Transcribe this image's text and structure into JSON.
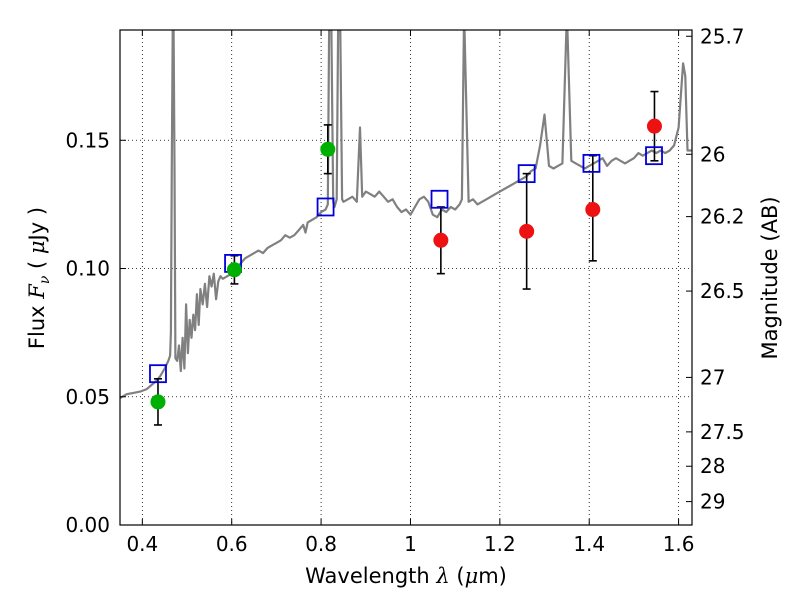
{
  "chart_data": {
    "type": "scatter",
    "title": "",
    "xlabel": {
      "prefix": "Wavelength  ",
      "symbol": "λ",
      "suffix": " (",
      "unit_symbol": "μ",
      "unit_tail": "m)"
    },
    "ylabel": {
      "prefix": "Flux  ",
      "symbol": "F",
      "subscript": "ν",
      "mid": "  ( ",
      "unit_symbol": "μ",
      "unit_tail": "Jy )"
    },
    "y2label": "Magnitude (AB)",
    "xlim": [
      0.35,
      1.63
    ],
    "ylim": [
      0.0,
      0.193
    ],
    "grid": true,
    "grid_style": "dotted",
    "x_ticks": [
      {
        "value": 0.4,
        "label": "0.4"
      },
      {
        "value": 0.6,
        "label": "0.6"
      },
      {
        "value": 0.8,
        "label": "0.8"
      },
      {
        "value": 1.0,
        "label": "1"
      },
      {
        "value": 1.2,
        "label": "1.2"
      },
      {
        "value": 1.4,
        "label": "1.4"
      },
      {
        "value": 1.6,
        "label": "1.6"
      }
    ],
    "y_ticks": [
      {
        "value": 0.0,
        "label": "0.00"
      },
      {
        "value": 0.05,
        "label": "0.05"
      },
      {
        "value": 0.1,
        "label": "0.10"
      },
      {
        "value": 0.15,
        "label": "0.15"
      }
    ],
    "y2_ticks": [
      {
        "label": "25.7",
        "magnitude": 25.7
      },
      {
        "label": "26",
        "magnitude": 26.0
      },
      {
        "label": "26.2",
        "magnitude": 26.2
      },
      {
        "label": "26.5",
        "magnitude": 26.5
      },
      {
        "label": "27",
        "magnitude": 27.0
      },
      {
        "label": "27.5",
        "magnitude": 27.5
      },
      {
        "label": "28",
        "magnitude": 28.0
      },
      {
        "label": "29",
        "magnitude": 29.0
      }
    ],
    "colors": {
      "model_line": "#808080",
      "detections": "#00b000",
      "upper_points": "#ee1111",
      "model_boxes": "#0000dd",
      "error_bars": "#000000"
    },
    "series": [
      {
        "kind": "model_spectrum",
        "points": [
          [
            0.35,
            0.0495
          ],
          [
            0.365,
            0.051
          ],
          [
            0.38,
            0.0515
          ],
          [
            0.395,
            0.052
          ],
          [
            0.41,
            0.053
          ],
          [
            0.42,
            0.0545
          ],
          [
            0.43,
            0.056
          ],
          [
            0.44,
            0.058
          ],
          [
            0.45,
            0.061
          ],
          [
            0.458,
            0.064
          ],
          [
            0.462,
            0.066
          ],
          [
            0.464,
            0.075
          ],
          [
            0.466,
            0.14
          ],
          [
            0.468,
            0.193
          ],
          [
            0.47,
            0.193
          ],
          [
            0.472,
            0.14
          ],
          [
            0.474,
            0.065
          ],
          [
            0.478,
            0.064
          ],
          [
            0.482,
            0.07
          ],
          [
            0.486,
            0.06
          ],
          [
            0.49,
            0.073
          ],
          [
            0.494,
            0.061
          ],
          [
            0.498,
            0.086
          ],
          [
            0.502,
            0.067
          ],
          [
            0.506,
            0.08
          ],
          [
            0.51,
            0.073
          ],
          [
            0.514,
            0.082
          ],
          [
            0.518,
            0.076
          ],
          [
            0.522,
            0.09
          ],
          [
            0.526,
            0.078
          ],
          [
            0.53,
            0.092
          ],
          [
            0.535,
            0.086
          ],
          [
            0.54,
            0.094
          ],
          [
            0.545,
            0.085
          ],
          [
            0.55,
            0.097
          ],
          [
            0.555,
            0.093
          ],
          [
            0.56,
            0.098
          ],
          [
            0.565,
            0.088
          ],
          [
            0.57,
            0.095
          ],
          [
            0.575,
            0.097
          ],
          [
            0.58,
            0.096
          ],
          [
            0.59,
            0.097
          ],
          [
            0.6,
            0.098
          ],
          [
            0.61,
            0.1
          ],
          [
            0.62,
            0.102
          ],
          [
            0.63,
            0.104
          ],
          [
            0.64,
            0.105
          ],
          [
            0.65,
            0.106
          ],
          [
            0.66,
            0.107
          ],
          [
            0.67,
            0.106
          ],
          [
            0.68,
            0.108
          ],
          [
            0.69,
            0.109
          ],
          [
            0.7,
            0.11
          ],
          [
            0.71,
            0.111
          ],
          [
            0.72,
            0.113
          ],
          [
            0.73,
            0.112
          ],
          [
            0.74,
            0.113
          ],
          [
            0.75,
            0.115
          ],
          [
            0.76,
            0.117
          ],
          [
            0.765,
            0.114
          ],
          [
            0.77,
            0.118
          ],
          [
            0.78,
            0.119
          ],
          [
            0.79,
            0.12
          ],
          [
            0.8,
            0.122
          ],
          [
            0.81,
            0.123
          ],
          [
            0.815,
            0.125
          ],
          [
            0.818,
            0.193
          ],
          [
            0.823,
            0.193
          ],
          [
            0.827,
            0.126
          ],
          [
            0.83,
            0.124
          ],
          [
            0.835,
            0.127
          ],
          [
            0.838,
            0.193
          ],
          [
            0.843,
            0.193
          ],
          [
            0.847,
            0.127
          ],
          [
            0.85,
            0.126
          ],
          [
            0.86,
            0.127
          ],
          [
            0.87,
            0.128
          ],
          [
            0.88,
            0.126
          ],
          [
            0.887,
            0.155
          ],
          [
            0.892,
            0.128
          ],
          [
            0.9,
            0.13
          ],
          [
            0.91,
            0.129
          ],
          [
            0.92,
            0.128
          ],
          [
            0.93,
            0.13
          ],
          [
            0.94,
            0.128
          ],
          [
            0.95,
            0.126
          ],
          [
            0.96,
            0.127
          ],
          [
            0.97,
            0.124
          ],
          [
            0.98,
            0.122
          ],
          [
            0.99,
            0.123
          ],
          [
            1.0,
            0.121
          ],
          [
            1.01,
            0.124
          ],
          [
            1.02,
            0.127
          ],
          [
            1.03,
            0.128
          ],
          [
            1.04,
            0.126
          ],
          [
            1.05,
            0.121
          ],
          [
            1.06,
            0.12
          ],
          [
            1.07,
            0.123
          ],
          [
            1.08,
            0.122
          ],
          [
            1.09,
            0.124
          ],
          [
            1.1,
            0.123
          ],
          [
            1.11,
            0.125
          ],
          [
            1.115,
            0.127
          ],
          [
            1.12,
            0.2
          ],
          [
            1.13,
            0.126
          ],
          [
            1.14,
            0.127
          ],
          [
            1.15,
            0.125
          ],
          [
            1.16,
            0.126
          ],
          [
            1.17,
            0.127
          ],
          [
            1.18,
            0.128
          ],
          [
            1.19,
            0.129
          ],
          [
            1.2,
            0.13
          ],
          [
            1.21,
            0.131
          ],
          [
            1.22,
            0.132
          ],
          [
            1.23,
            0.133
          ],
          [
            1.24,
            0.134
          ],
          [
            1.25,
            0.135
          ],
          [
            1.26,
            0.136
          ],
          [
            1.27,
            0.138
          ],
          [
            1.28,
            0.139
          ],
          [
            1.29,
            0.148
          ],
          [
            1.3,
            0.16
          ],
          [
            1.31,
            0.14
          ],
          [
            1.32,
            0.139
          ],
          [
            1.33,
            0.14
          ],
          [
            1.34,
            0.141
          ],
          [
            1.35,
            0.2
          ],
          [
            1.36,
            0.142
          ],
          [
            1.37,
            0.141
          ],
          [
            1.38,
            0.14
          ],
          [
            1.39,
            0.139
          ],
          [
            1.4,
            0.14
          ],
          [
            1.41,
            0.141
          ],
          [
            1.42,
            0.142
          ],
          [
            1.43,
            0.143
          ],
          [
            1.44,
            0.14
          ],
          [
            1.45,
            0.142
          ],
          [
            1.46,
            0.143
          ],
          [
            1.47,
            0.142
          ],
          [
            1.48,
            0.141
          ],
          [
            1.49,
            0.142
          ],
          [
            1.5,
            0.143
          ],
          [
            1.51,
            0.145
          ],
          [
            1.52,
            0.144
          ],
          [
            1.53,
            0.145
          ],
          [
            1.54,
            0.146
          ],
          [
            1.55,
            0.145
          ],
          [
            1.56,
            0.146
          ],
          [
            1.57,
            0.145
          ],
          [
            1.58,
            0.146
          ],
          [
            1.59,
            0.148
          ],
          [
            1.6,
            0.155
          ],
          [
            1.61,
            0.18
          ],
          [
            1.615,
            0.175
          ],
          [
            1.62,
            0.146
          ],
          [
            1.63,
            0.146
          ]
        ]
      },
      {
        "kind": "model_boxes",
        "points": [
          {
            "x": 0.435,
            "y": 0.059
          },
          {
            "x": 0.603,
            "y": 0.102
          },
          {
            "x": 0.81,
            "y": 0.124
          },
          {
            "x": 1.065,
            "y": 0.127
          },
          {
            "x": 1.26,
            "y": 0.137
          },
          {
            "x": 1.405,
            "y": 0.141
          },
          {
            "x": 1.545,
            "y": 0.144
          }
        ]
      },
      {
        "kind": "detections",
        "points": [
          {
            "x": 0.435,
            "y": 0.048,
            "ylo": 0.039,
            "yhi": 0.057
          },
          {
            "x": 0.606,
            "y": 0.0995,
            "ylo": 0.094,
            "yhi": 0.105
          },
          {
            "x": 0.815,
            "y": 0.1465,
            "ylo": 0.137,
            "yhi": 0.156
          }
        ]
      },
      {
        "kind": "upper_points",
        "points": [
          {
            "x": 1.068,
            "y": 0.111,
            "ylo": 0.098,
            "yhi": 0.124
          },
          {
            "x": 1.26,
            "y": 0.1145,
            "ylo": 0.092,
            "yhi": 0.137
          },
          {
            "x": 1.408,
            "y": 0.123,
            "ylo": 0.103,
            "yhi": 0.144
          },
          {
            "x": 1.546,
            "y": 0.1555,
            "ylo": 0.142,
            "yhi": 0.169
          }
        ]
      }
    ]
  }
}
